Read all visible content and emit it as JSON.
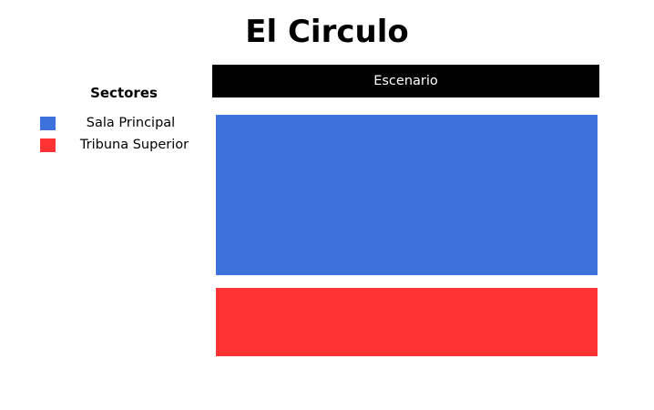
{
  "venue": {
    "title": "El Circulo",
    "stage_label": "Escenario"
  },
  "legend": {
    "heading": "Sectores",
    "items": [
      {
        "label": "Sala Principal",
        "color": "#3d72dc"
      },
      {
        "label": "Tribuna Superior",
        "color": "#ff3333"
      }
    ]
  },
  "sectors": [
    {
      "name": "Sala Principal",
      "color": "#3d72dc"
    },
    {
      "name": "Tribuna Superior",
      "color": "#ff3333"
    }
  ],
  "colors": {
    "stage_background": "#000000",
    "stage_text": "#ffffff",
    "page_background": "#ffffff"
  }
}
